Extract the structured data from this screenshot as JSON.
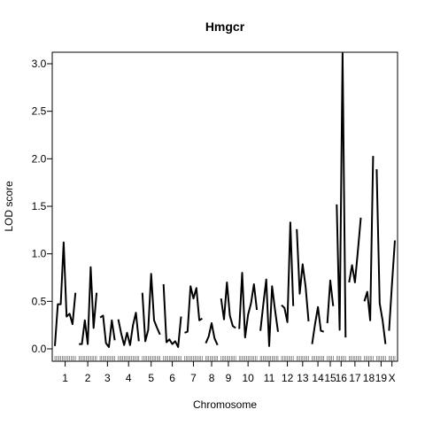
{
  "chart_data": {
    "type": "line",
    "title": "Hmgcr",
    "xlabel": "Chromosome",
    "ylabel": "LOD score",
    "ylim": [
      -0.1,
      3.25
    ],
    "yticks": [
      "0.0",
      "0.5",
      "1.0",
      "1.5",
      "2.0",
      "2.5",
      "3.0"
    ],
    "ytick_values": [
      0,
      0.5,
      1,
      1.5,
      2,
      2.5,
      3
    ],
    "grid": false,
    "legend": "none",
    "line_color": "#000000",
    "chromosomes": [
      {
        "label": "1",
        "lod": [
          0.03,
          0.47,
          0.47,
          1.12,
          0.34,
          0.37,
          0.26,
          0.59
        ]
      },
      {
        "label": "2",
        "lod": [
          0.05,
          0.05,
          0.3,
          0.05,
          0.86,
          0.22,
          0.59
        ]
      },
      {
        "label": "3",
        "lod": [
          0.33,
          0.35,
          0.06,
          0.02,
          0.3,
          0.09
        ]
      },
      {
        "label": "4",
        "lod": [
          0.31,
          0.16,
          0.04,
          0.17,
          0.04,
          0.25,
          0.38,
          0.08
        ]
      },
      {
        "label": "5",
        "lod": [
          0.59,
          0.08,
          0.2,
          0.79,
          0.3,
          0.22,
          0.15
        ]
      },
      {
        "label": "6",
        "lod": [
          0.68,
          0.07,
          0.1,
          0.05,
          0.08,
          0.02,
          0.34
        ]
      },
      {
        "label": "7",
        "lod": [
          0.17,
          0.18,
          0.66,
          0.53,
          0.64,
          0.3,
          0.32
        ]
      },
      {
        "label": "8",
        "lod": [
          0.06,
          0.13,
          0.27,
          0.11,
          0.04
        ]
      },
      {
        "label": "9",
        "lod": [
          0.53,
          0.31,
          0.7,
          0.35,
          0.24,
          0.22
        ]
      },
      {
        "label": "10",
        "lod": [
          0.21,
          0.8,
          0.12,
          0.36,
          0.48,
          0.68,
          0.41
        ]
      },
      {
        "label": "11",
        "lod": [
          0.19,
          0.47,
          0.73,
          0.03,
          0.66,
          0.41,
          0.18
        ]
      },
      {
        "label": "12",
        "lod": [
          0.46,
          0.43,
          0.28,
          1.33,
          0.45
        ]
      },
      {
        "label": "13",
        "lod": [
          1.26,
          0.58,
          0.89,
          0.66,
          0.29
        ]
      },
      {
        "label": "14",
        "lod": [
          0.05,
          0.26,
          0.44,
          0.19,
          0.18
        ]
      },
      {
        "label": "15",
        "lod": [
          0.27,
          0.72,
          0.45
        ]
      },
      {
        "label": "16",
        "lod": [
          1.52,
          0.2,
          3.11,
          0.12
        ]
      },
      {
        "label": "17",
        "lod": [
          0.7,
          0.88,
          0.7,
          1.03,
          1.38
        ]
      },
      {
        "label": "18",
        "lod": [
          0.5,
          0.6,
          0.3,
          2.03
        ]
      },
      {
        "label": "19",
        "lod": [
          1.89,
          0.48,
          0.3,
          0.05
        ]
      },
      {
        "label": "X",
        "lod": [
          0.19,
          0.68,
          1.14
        ]
      }
    ]
  }
}
